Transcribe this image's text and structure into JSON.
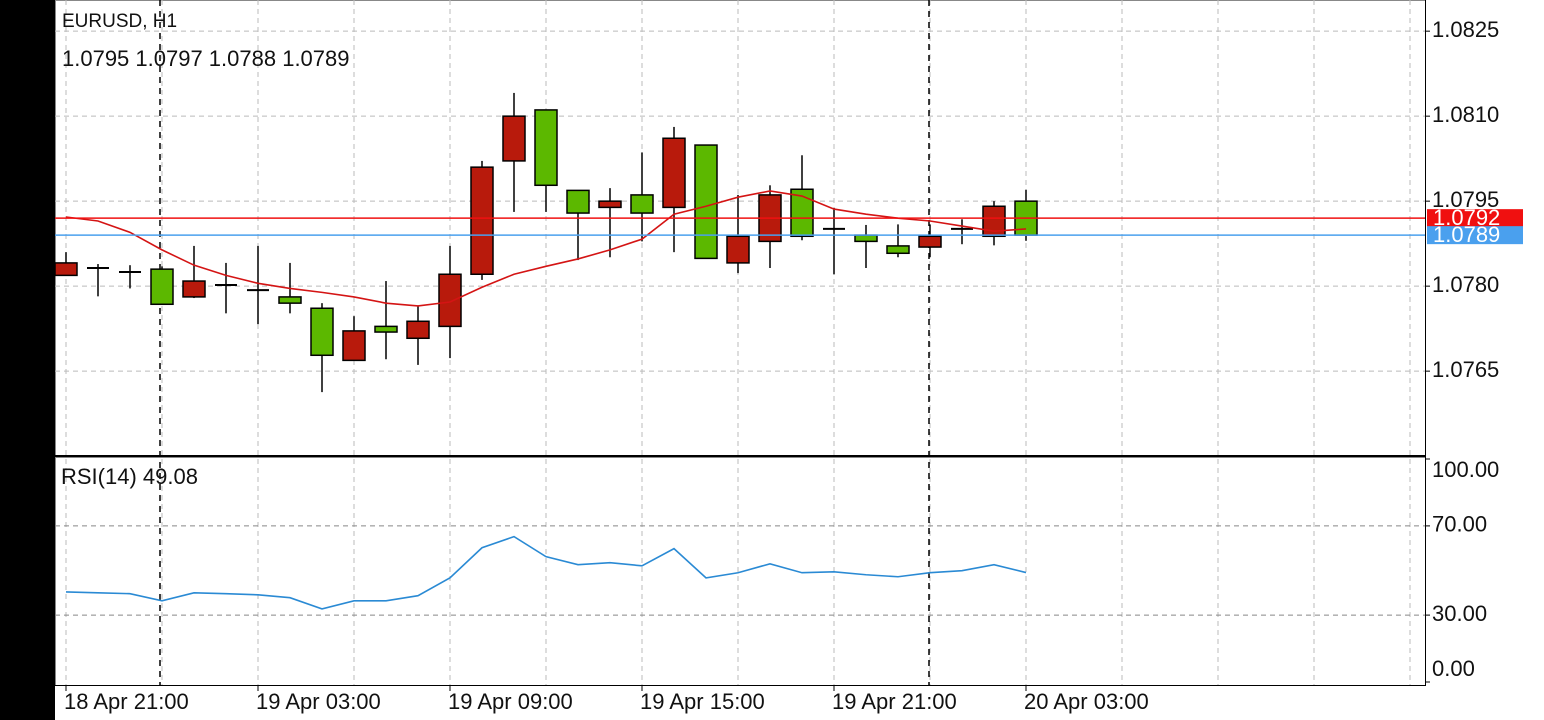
{
  "chart_data": [
    {
      "type": "candlestick",
      "title": "EURUSD, H1",
      "subtitle": "1.0795 1.0797 1.0788 1.0789",
      "categories": [
        "18 Apr 21:00",
        null,
        null,
        null,
        null,
        null,
        "19 Apr 03:00",
        null,
        null,
        null,
        null,
        null,
        "19 Apr 09:00",
        null,
        null,
        null,
        null,
        null,
        "19 Apr 15:00",
        null,
        null,
        null,
        null,
        null,
        "19 Apr 21:00",
        null,
        null,
        null,
        null,
        null,
        "20 Apr 03:00"
      ],
      "open": [
        1.07819,
        1.07832,
        1.07825,
        1.0783,
        1.07781,
        1.07802,
        1.07793,
        1.07781,
        1.07761,
        1.07669,
        1.07729,
        1.07708,
        1.07729,
        1.07821,
        1.08021,
        1.08111,
        1.07969,
        1.07939,
        1.07961,
        1.07939,
        1.08049,
        1.07841,
        1.07879,
        1.07971,
        1.07901,
        1.0789,
        1.07871,
        1.07869,
        1.07901,
        1.07888,
        1.0795
      ],
      "high": [
        1.0786,
        1.07839,
        1.07837,
        1.07835,
        1.07871,
        1.07841,
        1.07871,
        1.07841,
        1.0777,
        1.07747,
        1.07809,
        1.07765,
        1.07871,
        1.08021,
        1.08141,
        1.08111,
        1.07969,
        1.07973,
        1.08036,
        1.08081,
        1.08049,
        1.07961,
        1.07978,
        1.08031,
        1.07938,
        1.07908,
        1.07909,
        1.07909,
        1.07918,
        1.0795,
        1.0797
      ],
      "low": [
        1.07818,
        1.07782,
        1.07796,
        1.07768,
        1.07779,
        1.07752,
        1.07733,
        1.07752,
        1.07613,
        1.07669,
        1.07671,
        1.07661,
        1.07673,
        1.07811,
        1.07931,
        1.07931,
        1.07846,
        1.07851,
        1.07879,
        1.0786,
        1.07849,
        1.07823,
        1.07832,
        1.07881,
        1.07821,
        1.07832,
        1.07851,
        1.07851,
        1.07874,
        1.07872,
        1.0788
      ],
      "close": [
        1.07841,
        1.07832,
        1.07825,
        1.07768,
        1.07809,
        1.07802,
        1.07793,
        1.0777,
        1.07678,
        1.07721,
        1.07719,
        1.07738,
        1.07821,
        1.0801,
        1.081,
        1.07978,
        1.07929,
        1.0795,
        1.07929,
        1.08061,
        1.07849,
        1.07888,
        1.07961,
        1.07888,
        1.07901,
        1.07879,
        1.07858,
        1.07888,
        1.07901,
        1.07941,
        1.0789
      ],
      "up_color": "#b81a0c",
      "down_color": "#5cb800",
      "ma": {
        "color": "#d41414",
        "values": [
          1.07922,
          1.07915,
          1.07895,
          1.07864,
          1.07837,
          1.07819,
          1.07805,
          1.07796,
          1.07789,
          1.07781,
          1.0777,
          1.07765,
          1.07772,
          1.07798,
          1.07821,
          1.07835,
          1.07848,
          1.07864,
          1.07883,
          1.07927,
          1.07941,
          1.07957,
          1.07968,
          1.07959,
          1.07936,
          1.07927,
          1.0792,
          1.07915,
          1.07906,
          1.07897,
          1.07901
        ]
      },
      "price_lines": [
        {
          "value": 1.0792,
          "color": "#f01010"
        },
        {
          "value": 1.0789,
          "color": "#4aa0ee"
        }
      ],
      "ylim": [
        1.07502,
        1.08305
      ],
      "yticks": [
        1.0825,
        {
          "value": 1.081,
          "label": "1.0810"
        },
        1.0795,
        {
          "value": 1.078,
          "label": "1.0780"
        },
        1.0765
      ],
      "grid": true
    },
    {
      "type": "line",
      "title": "RSI(14) 49.08",
      "color": "#2a8ad4",
      "values": [
        40.4,
        40,
        39.6,
        36.4,
        40,
        39.6,
        39.1,
        37.8,
        32.8,
        36.4,
        36.4,
        38.7,
        46.7,
        60.2,
        65.2,
        56.2,
        52.6,
        53.5,
        52.1,
        59.8,
        46.7,
        49,
        53,
        49,
        49.4,
        48.1,
        47.2,
        49,
        49.9,
        52.6,
        49.08
      ],
      "ylim": [
        0,
        100
      ],
      "yticks": [
        {
          "value": 100,
          "label": "100.00"
        },
        {
          "value": 70,
          "label": "70.00"
        },
        {
          "value": 30,
          "label": "30.00"
        },
        {
          "value": 0,
          "label": "0.00"
        }
      ]
    }
  ]
}
